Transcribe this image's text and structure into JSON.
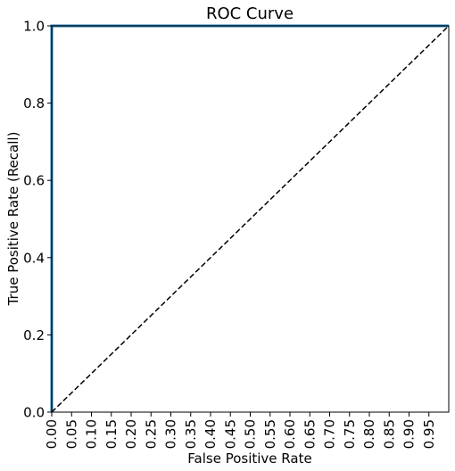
{
  "chart_data": {
    "type": "line",
    "title": "ROC Curve",
    "xlabel": "False Positive Rate",
    "ylabel": "True Positive Rate (Recall)",
    "xlim": [
      0.0,
      1.0
    ],
    "ylim": [
      0.0,
      1.0
    ],
    "x_ticks": [
      "0.00",
      "0.05",
      "0.10",
      "0.15",
      "0.20",
      "0.25",
      "0.30",
      "0.35",
      "0.40",
      "0.45",
      "0.50",
      "0.55",
      "0.60",
      "0.65",
      "0.70",
      "0.75",
      "0.80",
      "0.85",
      "0.90",
      "0.95"
    ],
    "y_ticks": [
      "0.0",
      "0.2",
      "0.4",
      "0.6",
      "0.8",
      "1.0"
    ],
    "grid": false,
    "series": [
      {
        "x": [
          0.0,
          0.0,
          1.0
        ],
        "y": [
          0.0,
          1.0,
          1.0
        ],
        "color": "#1f77b4",
        "style": "solid"
      },
      {
        "x": [
          0.0,
          1.0
        ],
        "y": [
          0.0,
          1.0
        ],
        "color": "#000000",
        "style": "dashed"
      }
    ]
  }
}
